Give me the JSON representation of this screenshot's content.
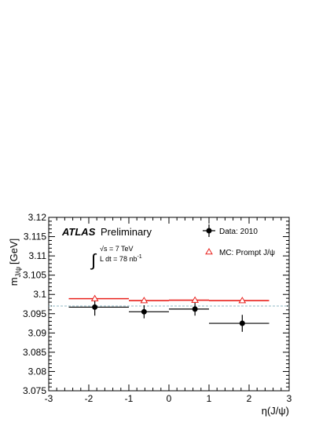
{
  "chart_data": {
    "type": "scatter",
    "title": "",
    "xlabel": "η(J/ψ)",
    "ylabel": "m",
    "ylabel_sub": "J/ψ",
    "ylabel_unit": "[GeV]",
    "xlim": [
      -3,
      3
    ],
    "ylim": [
      3.075,
      3.12
    ],
    "x_ticks": [
      "-3",
      "-2",
      "-1",
      "0",
      "1",
      "2",
      "3"
    ],
    "y_ticks": [
      "3.075",
      "3.08",
      "3.085",
      "3.09",
      "3.095",
      "3.1",
      "3.105",
      "3.11",
      "3.115",
      "3.12"
    ],
    "grid": false,
    "legend_position": "top-right",
    "reference_line": {
      "y": 3.097,
      "style": "dashed",
      "color": "#8fb8c4"
    },
    "annotations": {
      "experiment": "ATLAS",
      "status": "Preliminary",
      "energy": "√s = 7 TeV",
      "luminosity": "L dt = 78 nb",
      "luminosity_exp": "-1"
    },
    "series": [
      {
        "name": "Data: 2010",
        "marker": "filled-circle",
        "color": "#000000",
        "points": [
          {
            "x": -1.85,
            "xlo": -2.5,
            "xhi": -1.0,
            "y": 3.0967,
            "yerr": 0.0022
          },
          {
            "x": -0.62,
            "xlo": -1.0,
            "xhi": 0.0,
            "y": 3.0955,
            "yerr": 0.0017
          },
          {
            "x": 0.65,
            "xlo": 0.0,
            "xhi": 1.0,
            "y": 3.0962,
            "yerr": 0.0017
          },
          {
            "x": 1.83,
            "xlo": 1.0,
            "xhi": 2.5,
            "y": 3.0925,
            "yerr": 0.0022
          }
        ]
      },
      {
        "name": "MC: Prompt J/ψ",
        "marker": "open-triangle",
        "color": "#e8201c",
        "points": [
          {
            "x": -1.85,
            "xlo": -2.5,
            "xhi": -1.0,
            "y": 3.0989,
            "yerr": 0.0004
          },
          {
            "x": -0.62,
            "xlo": -1.0,
            "xhi": 0.0,
            "y": 3.0984,
            "yerr": 0.0003
          },
          {
            "x": 0.65,
            "xlo": 0.0,
            "xhi": 1.0,
            "y": 3.0985,
            "yerr": 0.0003
          },
          {
            "x": 1.83,
            "xlo": 1.0,
            "xhi": 2.5,
            "y": 3.0984,
            "yerr": 0.0004
          }
        ]
      }
    ]
  }
}
